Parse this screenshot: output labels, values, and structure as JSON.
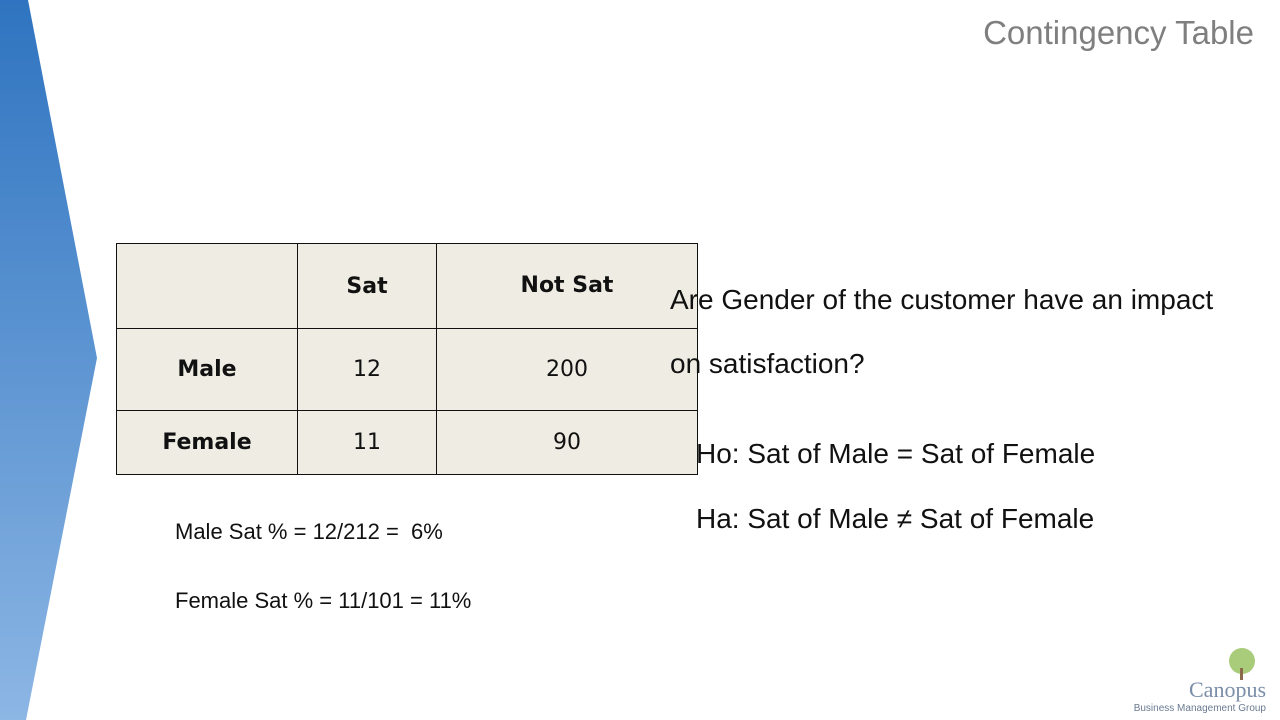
{
  "header": {
    "title": "Contingency Table"
  },
  "table": {
    "columns": [
      "Sat",
      "Not Sat"
    ],
    "rows": [
      {
        "label": "Male",
        "cells": [
          12,
          200
        ]
      },
      {
        "label": "Female",
        "cells": [
          11,
          90
        ]
      }
    ]
  },
  "notes": [
    "Male Sat % = 12/212 =  6%",
    "Female Sat % = 11/101 = 11%"
  ],
  "question": "Are Gender of the customer have an impact on satisfaction?",
  "hypotheses": [
    "Ho: Sat of Male = Sat of Female",
    "Ha: Sat of Male ≠ Sat of Female"
  ],
  "logo": {
    "name": "Canopus",
    "tagline": "Business Management Group"
  }
}
